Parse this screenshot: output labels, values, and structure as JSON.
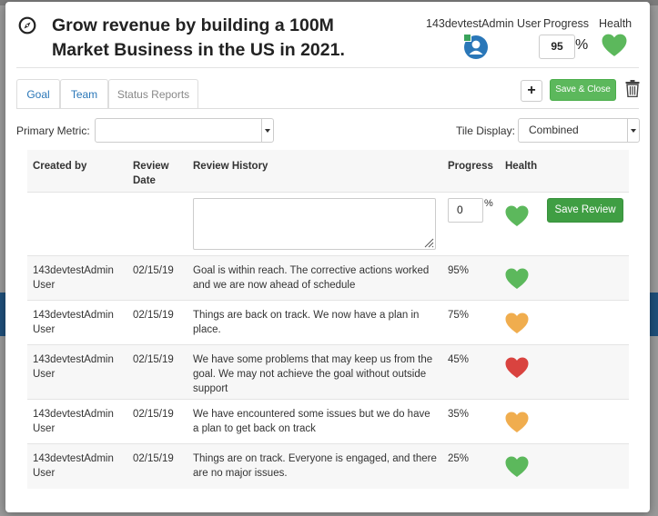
{
  "header": {
    "title": "Grow revenue by building a 100M Market Business in the US in 2021.",
    "owner": "143devtestAdmin User",
    "progress_label": "Progress",
    "health_label": "Health",
    "progress_value": "95",
    "percent_sign": "%",
    "health_color": "#5cb85c"
  },
  "tabs": [
    {
      "label": "Goal"
    },
    {
      "label": "Team"
    },
    {
      "label": "Status Reports"
    }
  ],
  "toolbar": {
    "add_label": "+",
    "save_close_label": "Save & Close"
  },
  "filters": {
    "primary_metric_label": "Primary Metric:",
    "primary_metric_value": "",
    "tile_display_label": "Tile Display:",
    "tile_display_value": "Combined"
  },
  "table": {
    "columns": [
      "Created by",
      "Review Date",
      "Review History",
      "Progress",
      "Health"
    ],
    "new_row": {
      "progress_value": "0",
      "percent_sign": "%",
      "health_color": "#5cb85c",
      "save_label": "Save Review"
    },
    "rows": [
      {
        "created_by": "143devtestAdmin User",
        "date": "02/15/19",
        "history": "Goal is within reach. The corrective actions worked and we are now ahead of schedule",
        "progress": "95%",
        "health_color": "#5cb85c"
      },
      {
        "created_by": "143devtestAdmin User",
        "date": "02/15/19",
        "history": "Things are back on track. We now have a plan in place.",
        "progress": "75%",
        "health_color": "#f0ad4e"
      },
      {
        "created_by": "143devtestAdmin User",
        "date": "02/15/19",
        "history": "We have some problems that may keep us from the goal. We may not achieve the goal without outside support",
        "progress": "45%",
        "health_color": "#d9433f"
      },
      {
        "created_by": "143devtestAdmin User",
        "date": "02/15/19",
        "history": "We have encountered some issues but we do have a plan to get back on track",
        "progress": "35%",
        "health_color": "#f0ad4e"
      },
      {
        "created_by": "143devtestAdmin User",
        "date": "02/15/19",
        "history": "Things are on track. Everyone is engaged, and there are no major issues.",
        "progress": "25%",
        "health_color": "#5cb85c"
      }
    ]
  },
  "colors": {
    "tab_link": "#2a77b8",
    "save_button": "#5cb85c",
    "save_review_button": "#3f9e43"
  }
}
